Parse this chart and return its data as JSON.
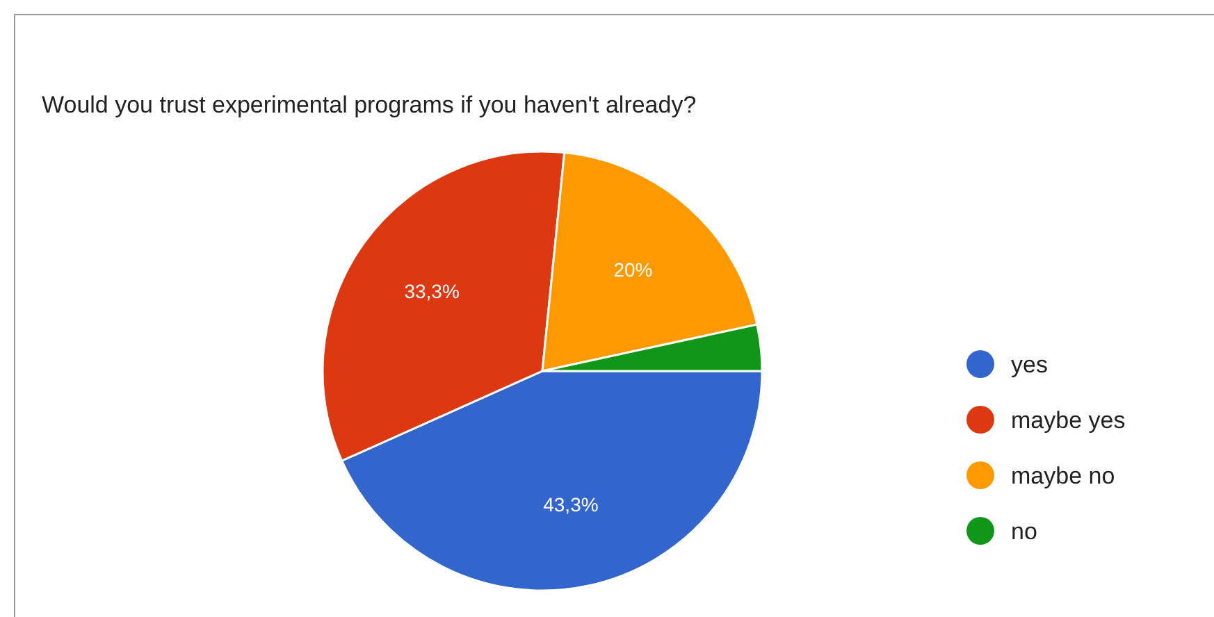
{
  "chart_data": {
    "type": "pie",
    "title": "Would you trust experimental programs if you haven't already?",
    "categories": [
      "yes",
      "maybe yes",
      "maybe no",
      "no"
    ],
    "values": [
      43.3,
      33.3,
      20,
      3.4
    ],
    "colors": [
      "#3366cc",
      "#dc3912",
      "#ff9900",
      "#109618"
    ],
    "value_labels": [
      "43,3%",
      "33,3%",
      "20%",
      null
    ],
    "legend": "right"
  }
}
